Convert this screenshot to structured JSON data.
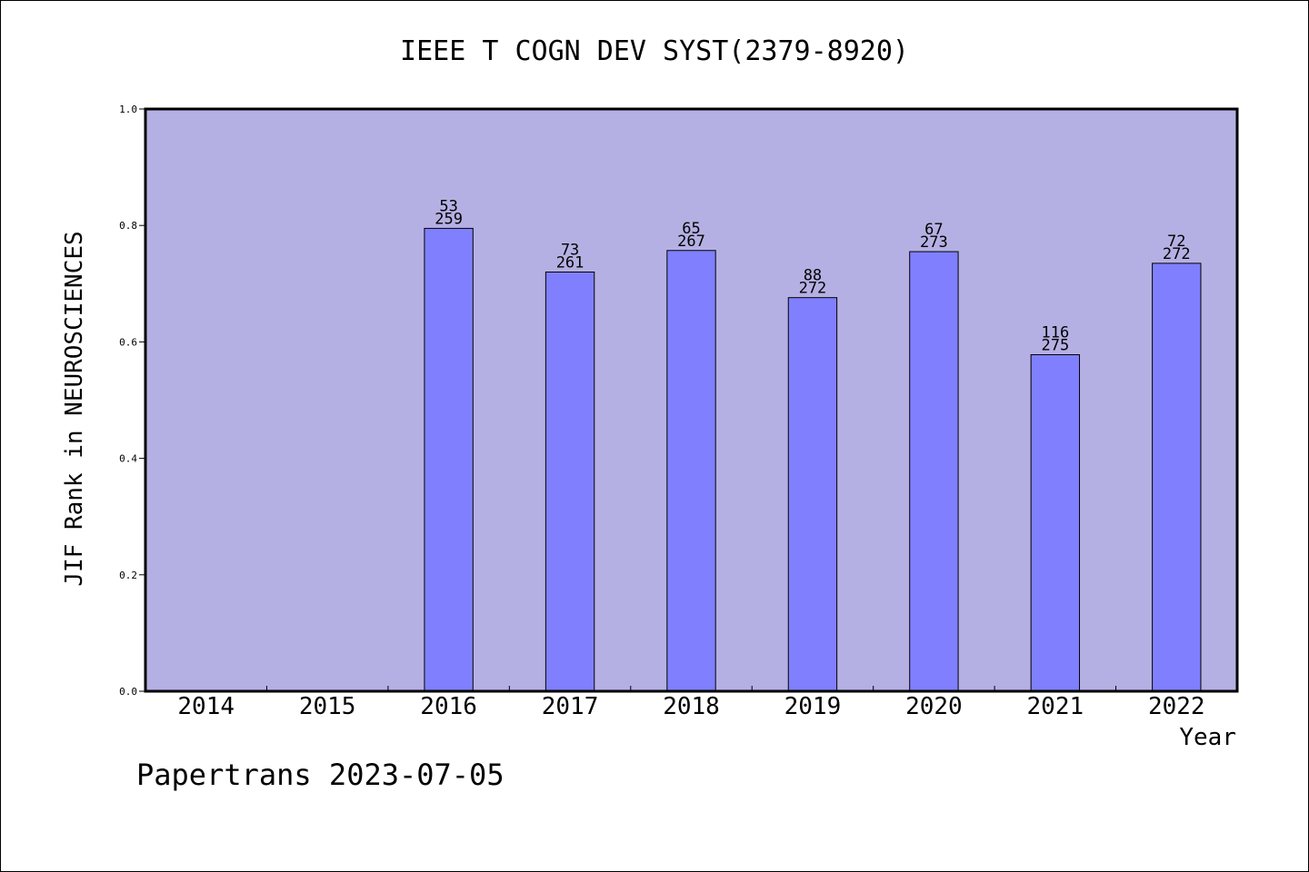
{
  "chart_data": {
    "type": "bar",
    "title": "IEEE T COGN DEV SYST(2379-8920)",
    "ylabel": "JIF Rank in NEUROSCIENCES",
    "xlabel": "Year",
    "categories": [
      "2014",
      "2015",
      "2016",
      "2017",
      "2018",
      "2019",
      "2020",
      "2021",
      "2022"
    ],
    "series": [
      {
        "values": [
          null,
          null,
          0.795,
          0.72,
          0.757,
          0.676,
          0.755,
          0.578,
          0.735
        ],
        "labels_top": [
          "",
          "",
          "53",
          "73",
          "65",
          "88",
          "67",
          "116",
          "72"
        ],
        "labels_bottom": [
          "",
          "",
          "259",
          "261",
          "267",
          "272",
          "273",
          "275",
          "272"
        ]
      }
    ],
    "ylim": [
      0,
      1.0
    ],
    "yticks": [
      "0.0",
      "0.2",
      "0.4",
      "0.6",
      "0.8",
      "1.0"
    ],
    "grid": false,
    "legend": "none",
    "colors": {
      "plot_background": "#b5b0e3",
      "bar": "#8080ff",
      "axes": "#000000"
    }
  },
  "footer": {
    "watermark": "Papertrans 2023-07-05"
  }
}
